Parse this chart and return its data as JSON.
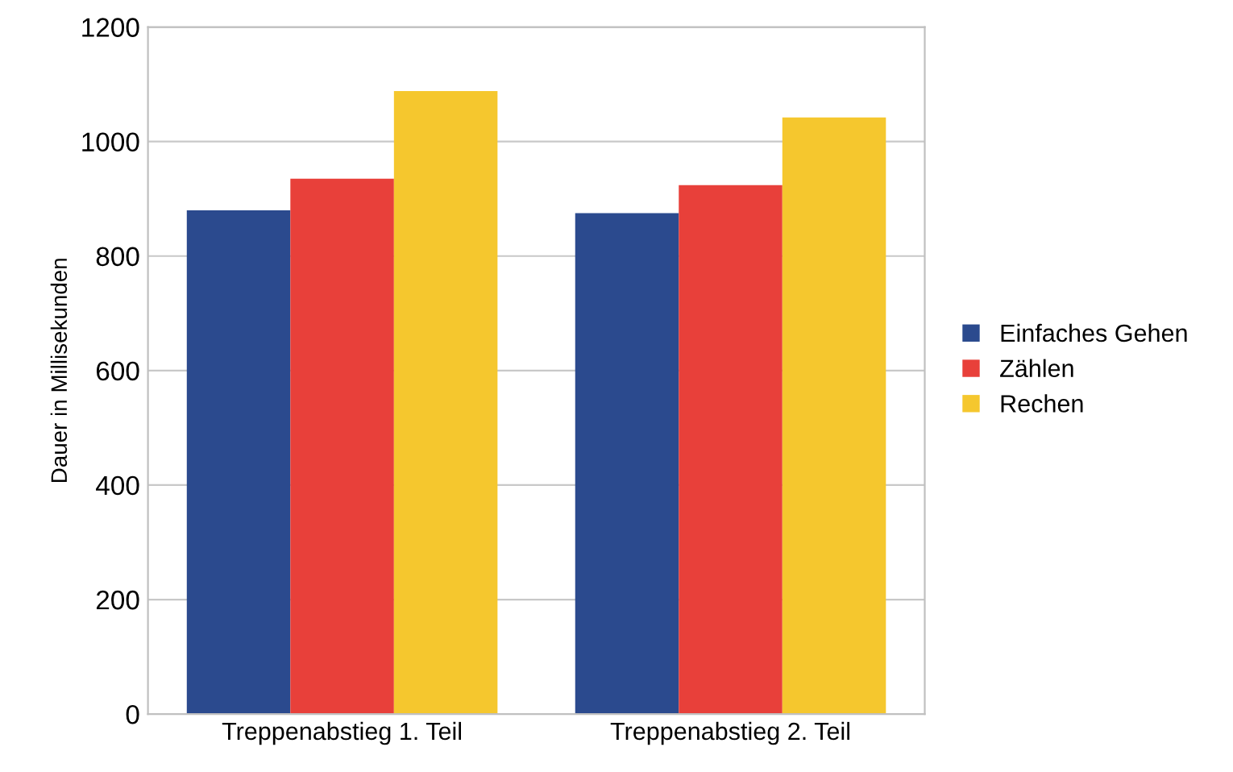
{
  "chart_data": {
    "type": "bar",
    "ylabel": "Dauer in Millisekunden",
    "categories": [
      "Treppenabstieg 1. Teil",
      "Treppenabstieg 2. Teil"
    ],
    "series": [
      {
        "name": "Einfaches Gehen",
        "color": "#2b4a8e",
        "values": [
          880,
          875
        ]
      },
      {
        "name": "Zählen",
        "color": "#e8403a",
        "values": [
          935,
          924
        ]
      },
      {
        "name": "Rechen",
        "color": "#f5c72e",
        "values": [
          1088,
          1042
        ]
      }
    ],
    "ylim": [
      0,
      1200
    ],
    "yticks": [
      0,
      200,
      400,
      600,
      800,
      1000,
      1200
    ],
    "grid": "y",
    "legend": "right"
  }
}
